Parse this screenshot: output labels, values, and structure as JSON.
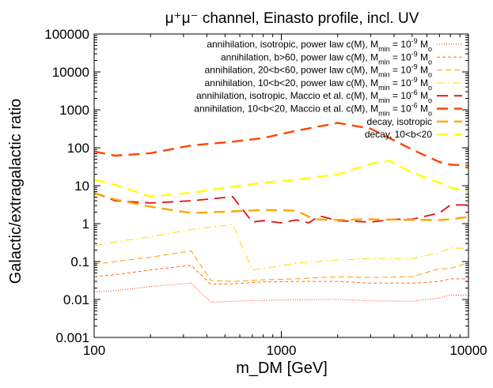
{
  "chart_data": {
    "type": "line",
    "title": "μ⁺μ⁻ channel, Einasto profile, incl. UV",
    "xlabel": "m_DM [GeV]",
    "ylabel": "Galactic/extragalactic ratio",
    "xscale": "log",
    "yscale": "log",
    "xlim": [
      100,
      10000
    ],
    "ylim": [
      0.001,
      100000
    ],
    "xticks": [
      "100",
      "1000",
      "10000"
    ],
    "yticks": [
      "0.001",
      "0.01",
      "0.1",
      "1",
      "10",
      "100",
      "1000",
      "10000",
      "100000"
    ],
    "grid": false,
    "legend_position": "top-right",
    "series": [
      {
        "name": "annihilation, isotropic, power law c(M), M_min = 10^-9 M_o",
        "color": "#ff2a00",
        "dash": "dot",
        "width": 1,
        "x": [
          100,
          130,
          200,
          330,
          420,
          550,
          800,
          1200,
          2000,
          3000,
          5000,
          7000,
          8000,
          10000
        ],
        "y": [
          0.016,
          0.017,
          0.022,
          0.027,
          0.0085,
          0.009,
          0.0095,
          0.0098,
          0.01,
          0.0092,
          0.009,
          0.011,
          0.013,
          0.013
        ]
      },
      {
        "name": "annihilation, b>60, power law c(M), M_min = 10^-9 M_o",
        "color": "#ff6a1a",
        "dash": "shortdash",
        "width": 1,
        "x": [
          100,
          130,
          200,
          330,
          420,
          550,
          800,
          1200,
          2000,
          3000,
          5000,
          7000,
          8000,
          10000
        ],
        "y": [
          0.04,
          0.045,
          0.06,
          0.08,
          0.025,
          0.026,
          0.029,
          0.03,
          0.03,
          0.027,
          0.027,
          0.03,
          0.035,
          0.035
        ]
      },
      {
        "name": "annihilation, 20<b<60, power law c(M), M_min = 10^-9 M_o",
        "color": "#ff9a00",
        "dash": "dash",
        "width": 1,
        "x": [
          100,
          130,
          200,
          330,
          420,
          550,
          800,
          1200,
          2000,
          3000,
          5000,
          7000,
          8000,
          10000
        ],
        "y": [
          0.085,
          0.1,
          0.13,
          0.19,
          0.032,
          0.03,
          0.033,
          0.035,
          0.04,
          0.038,
          0.04,
          0.065,
          0.065,
          0.095
        ]
      },
      {
        "name": "annihilation, 10<b<20, power law c(M), M_min = 10^-9 M_o",
        "color": "#ffdd00",
        "dash": "dashdot",
        "width": 1,
        "x": [
          100,
          130,
          200,
          330,
          550,
          700,
          800,
          1200,
          2000,
          3000,
          5000,
          7000,
          8000,
          10000
        ],
        "y": [
          0.26,
          0.33,
          0.45,
          0.7,
          0.95,
          0.06,
          0.065,
          0.09,
          0.11,
          0.12,
          0.12,
          0.17,
          0.23,
          0.22
        ]
      },
      {
        "name": "annihilation, isotropic, Maccio et al. c(M), M_min = 10^-6 M_o",
        "color": "#e01010",
        "dash": "longdash",
        "width": 1.8,
        "x": [
          100,
          130,
          200,
          330,
          550,
          700,
          800,
          1000,
          1200,
          1400,
          1600,
          2000,
          3000,
          4000,
          5000,
          7000,
          8000,
          10000
        ],
        "y": [
          6.5,
          4,
          3.5,
          4,
          5.1,
          1.1,
          1.2,
          1.05,
          1.25,
          1.05,
          1.6,
          1.2,
          1.1,
          1.3,
          1.3,
          1.9,
          3.1,
          3.1
        ]
      },
      {
        "name": "annihilation, 10<b<20, Maccio et al. c(M), M_min = 10^-6 M_o",
        "color": "#ff4500",
        "dash": "longdash",
        "width": 2.4,
        "x": [
          100,
          130,
          200,
          330,
          550,
          800,
          1200,
          2000,
          3000,
          5000,
          7000,
          8000,
          10000
        ],
        "y": [
          80,
          62,
          72,
          115,
          145,
          180,
          280,
          450,
          320,
          90,
          42,
          36,
          34
        ]
      },
      {
        "name": "decay, isotropic",
        "color": "#ffa500",
        "dash": "longdash",
        "width": 2.4,
        "x": [
          100,
          130,
          200,
          330,
          550,
          800,
          1200,
          1500,
          2000,
          3000,
          5000,
          7000,
          8000,
          10000
        ],
        "y": [
          6.5,
          4.3,
          2.8,
          1.9,
          2.1,
          2.3,
          2.2,
          1.3,
          1.25,
          1.3,
          1.25,
          1.25,
          1.3,
          1.5
        ]
      },
      {
        "name": "decay, 10<b<20",
        "color": "#ffff00",
        "dash": "longdash",
        "width": 2.4,
        "x": [
          100,
          130,
          200,
          330,
          550,
          800,
          1200,
          2000,
          3000,
          3800,
          5000,
          7000,
          8000,
          10000
        ],
        "y": [
          14.5,
          10.5,
          5.2,
          6.5,
          9.5,
          12,
          14.5,
          20,
          38,
          45,
          22,
          12,
          9,
          7
        ]
      }
    ]
  }
}
